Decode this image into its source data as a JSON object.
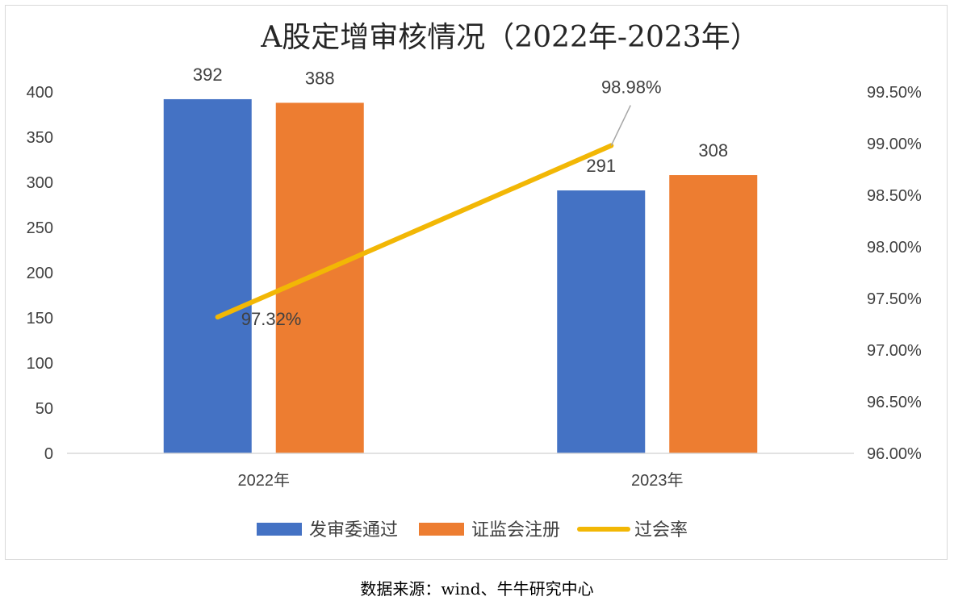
{
  "chart_data": {
    "type": "bar",
    "title": "A股定增审核情况（2022年-2023年）",
    "categories": [
      "2022年",
      "2023年"
    ],
    "series": [
      {
        "name": "发审委通过",
        "type": "bar",
        "axis": "left",
        "color": "#4472C4",
        "values": [
          392,
          291
        ],
        "labels": [
          "392",
          "291"
        ]
      },
      {
        "name": "证监会注册",
        "type": "bar",
        "axis": "left",
        "color": "#ED7D31",
        "values": [
          388,
          308
        ],
        "labels": [
          "388",
          "308"
        ]
      },
      {
        "name": "过会率",
        "type": "line",
        "axis": "right",
        "color": "#F2B705",
        "values": [
          97.32,
          98.98
        ],
        "labels": [
          "97.32%",
          "98.98%"
        ]
      }
    ],
    "y_left": {
      "min": 0,
      "max": 400,
      "step": 50,
      "ticks": [
        "0",
        "50",
        "100",
        "150",
        "200",
        "250",
        "300",
        "350",
        "400"
      ]
    },
    "y_right": {
      "min": 96.0,
      "max": 99.5,
      "step": 0.5,
      "ticks": [
        "96.00%",
        "96.50%",
        "97.00%",
        "97.50%",
        "98.00%",
        "98.50%",
        "99.00%",
        "99.50%"
      ]
    },
    "legend_position": "bottom",
    "grid": false
  },
  "footer": {
    "source": "数据来源：wind、牛牛研究中心"
  }
}
